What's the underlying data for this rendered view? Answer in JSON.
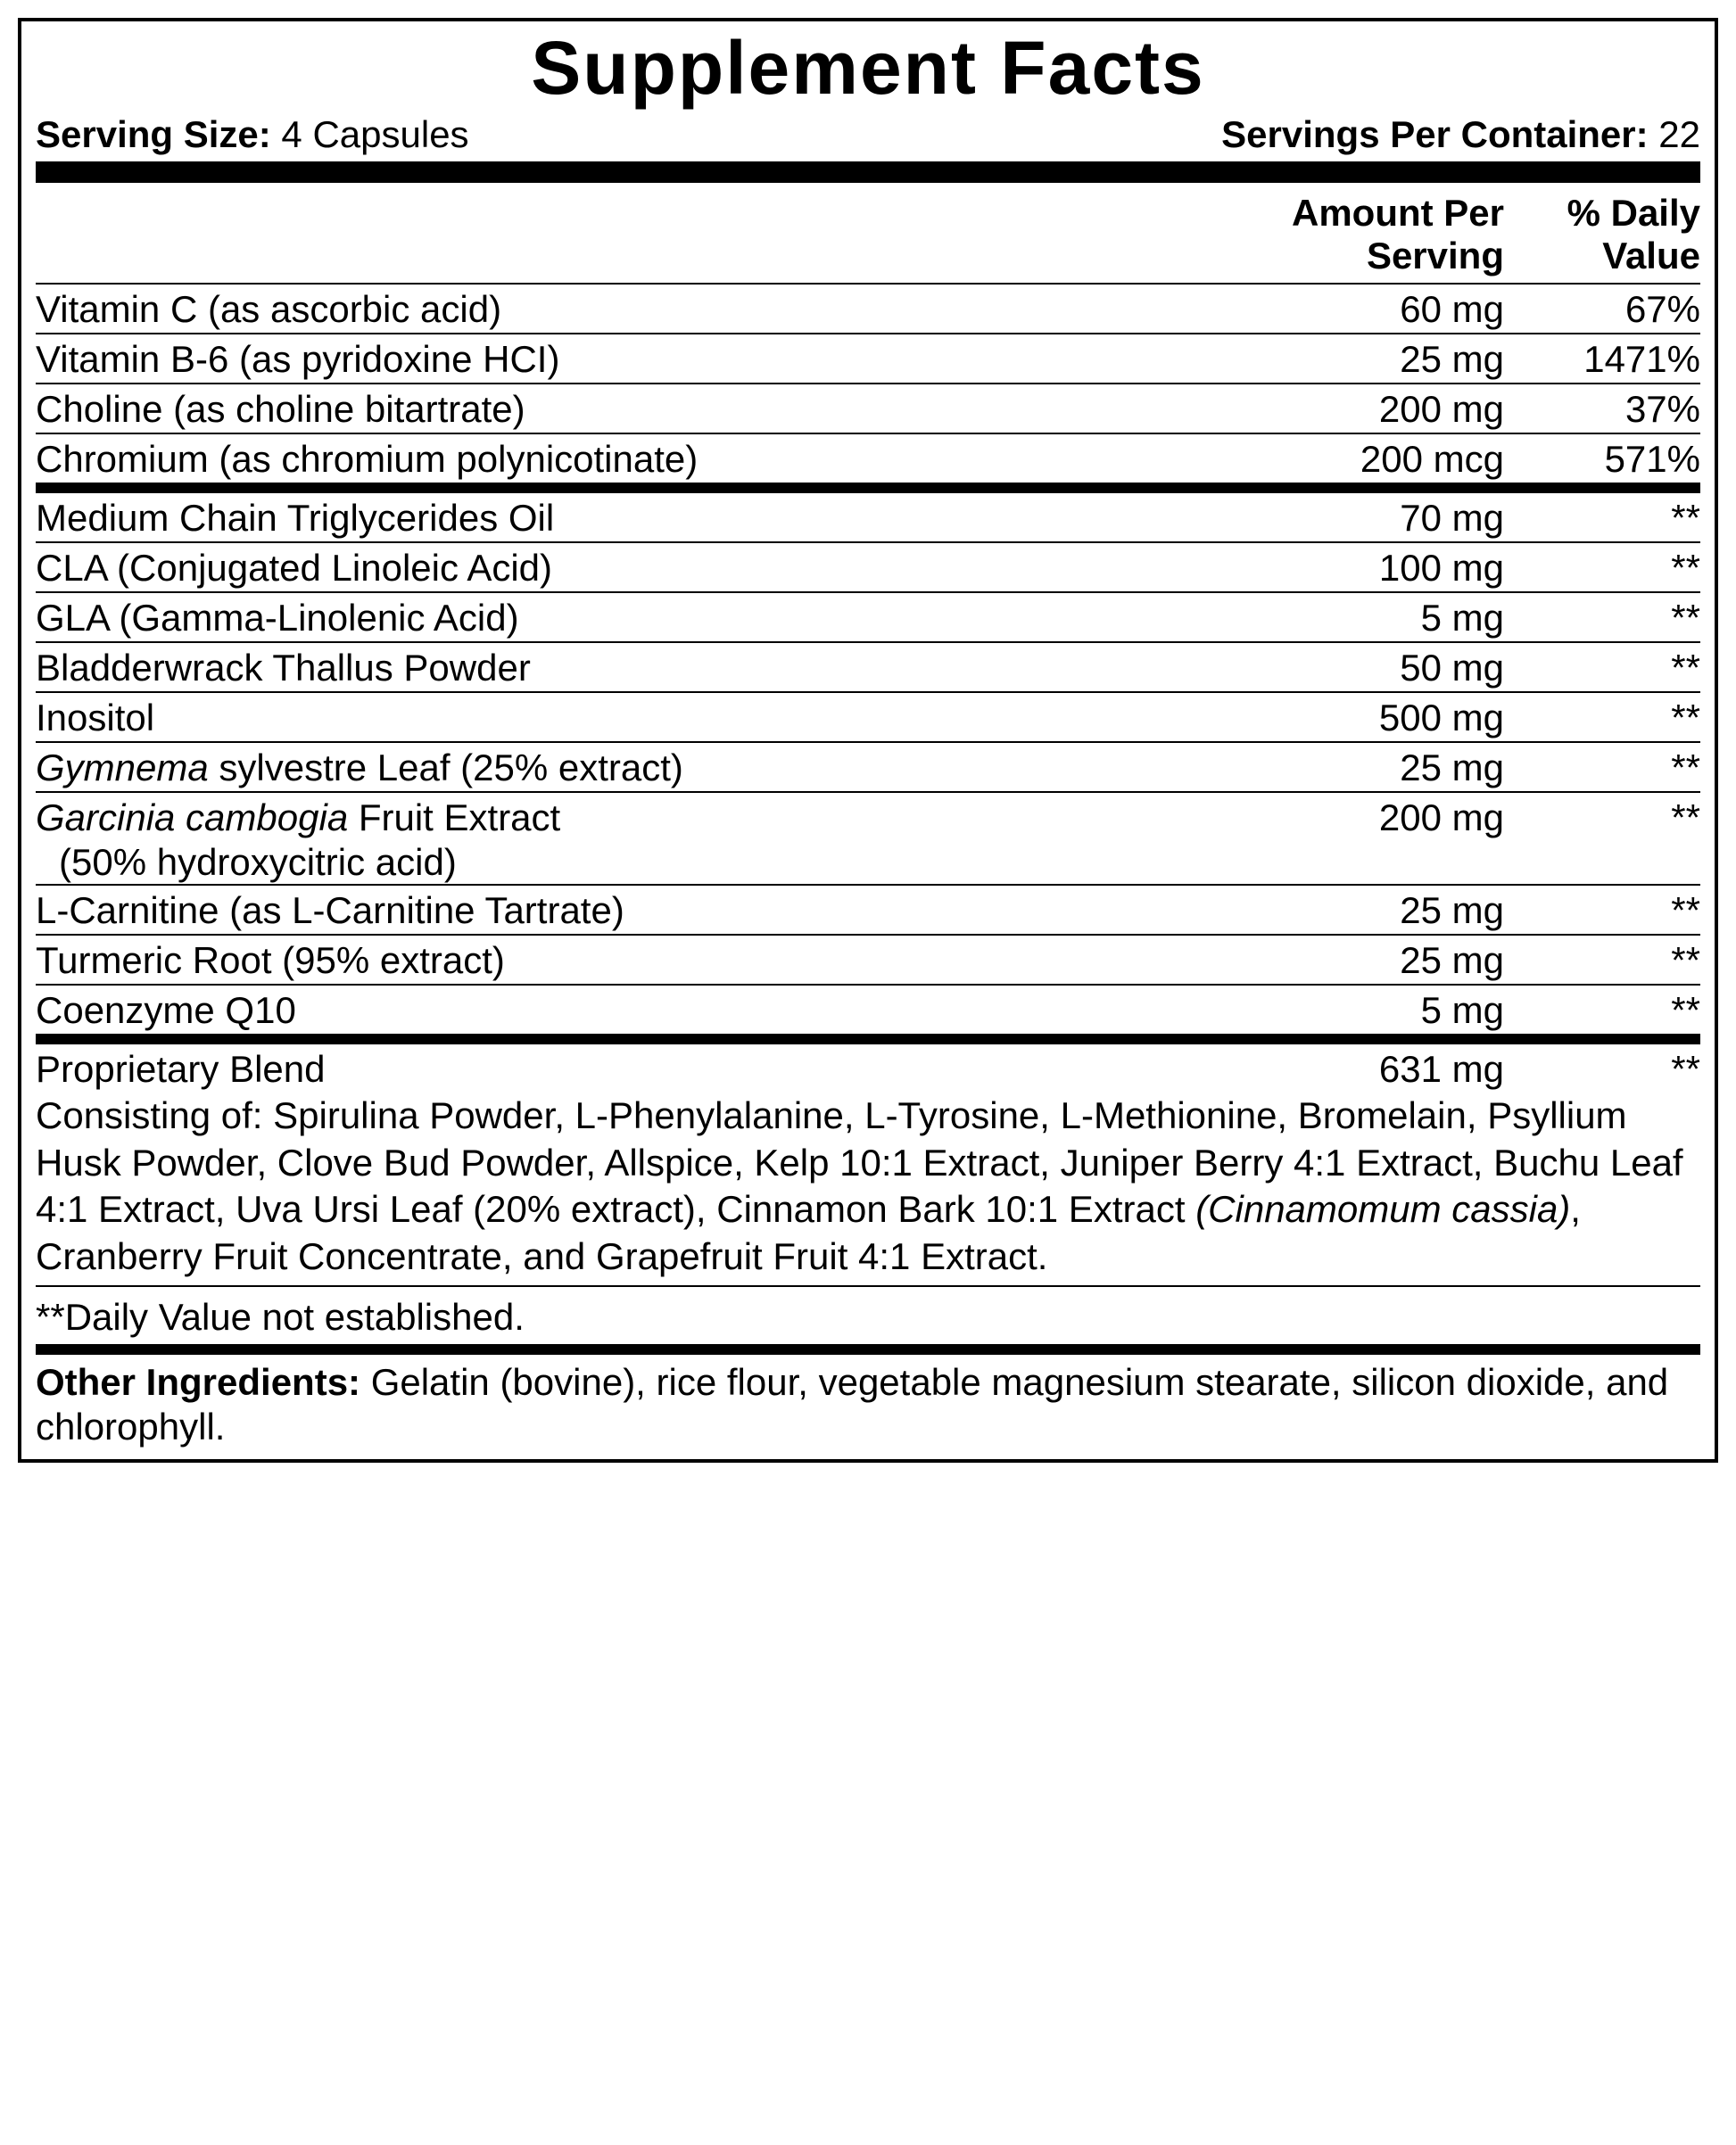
{
  "title": "Supplement Facts",
  "serving_size_label": "Serving Size:",
  "serving_size_value": " 4 Capsules",
  "servings_per_label": "Servings Per Container:",
  "servings_per_value": " 22",
  "header_amount_l1": "Amount Per",
  "header_amount_l2": "Serving",
  "header_dv_l1": "% Daily",
  "header_dv_l2": "Value",
  "section1": [
    {
      "name": "Vitamin C (as ascorbic acid)",
      "amt": "60 mg",
      "dv": "67%"
    },
    {
      "name": "Vitamin B-6 (as pyridoxine HCI)",
      "amt": "25 mg",
      "dv": "1471%"
    },
    {
      "name": "Choline (as choline bitartrate)",
      "amt": "200 mg",
      "dv": "37%"
    },
    {
      "name": "Chromium (as chromium polynicotinate)",
      "amt": "200 mcg",
      "dv": "571%"
    }
  ],
  "section2": [
    {
      "name": "Medium Chain Triglycerides Oil",
      "amt": "70 mg",
      "dv": "**"
    },
    {
      "name": "CLA (Conjugated Linoleic Acid)",
      "amt": "100 mg",
      "dv": "**"
    },
    {
      "name": "GLA (Gamma-Linolenic Acid)",
      "amt": "5 mg",
      "dv": "**"
    },
    {
      "name": "Bladderwrack Thallus Powder",
      "amt": "50 mg",
      "dv": "**"
    },
    {
      "name": "Inositol",
      "amt": "500 mg",
      "dv": "**"
    }
  ],
  "gymnema_pre": "Gymnema",
  "gymnema_post": " sylvestre Leaf (25% extract)",
  "gymnema_amt": "25 mg",
  "gymnema_dv": "**",
  "garcinia_pre": "Garcinia cambogia",
  "garcinia_post": " Fruit Extract",
  "garcinia_sub": "(50% hydroxycitric acid)",
  "garcinia_amt": "200 mg",
  "garcinia_dv": "**",
  "section3": [
    {
      "name": "L-Carnitine (as L-Carnitine Tartrate)",
      "amt": "25 mg",
      "dv": "**"
    },
    {
      "name": "Turmeric Root (95% extract)",
      "amt": "25 mg",
      "dv": "**"
    },
    {
      "name": "Coenzyme Q10",
      "amt": "5 mg",
      "dv": "**"
    }
  ],
  "blend_name": "Proprietary Blend",
  "blend_amt": "631 mg",
  "blend_dv": "**",
  "blend_desc_pre": "Consisting of: Spirulina Powder, L-Phenylalanine, L-Tyrosine, L-Methionine, Bromelain, Psyllium Husk Powder, Clove Bud Powder, Allspice, Kelp 10:1 Extract, Juniper Berry 4:1 Extract, Buchu Leaf 4:1 Extract, Uva Ursi Leaf (20% extract), Cinnamon Bark 10:1 Extract ",
  "blend_desc_italic": "(Cinnamomum cassia)",
  "blend_desc_post": ", Cranberry Fruit Concentrate, and Grapefruit Fruit 4:1 Extract.",
  "footnote": "**Daily Value not established.",
  "other_label": "Other Ingredients: ",
  "other_value": "Gelatin (bovine), rice flour, vegetable magnesium stearate, silicon dioxide, and chlorophyll."
}
